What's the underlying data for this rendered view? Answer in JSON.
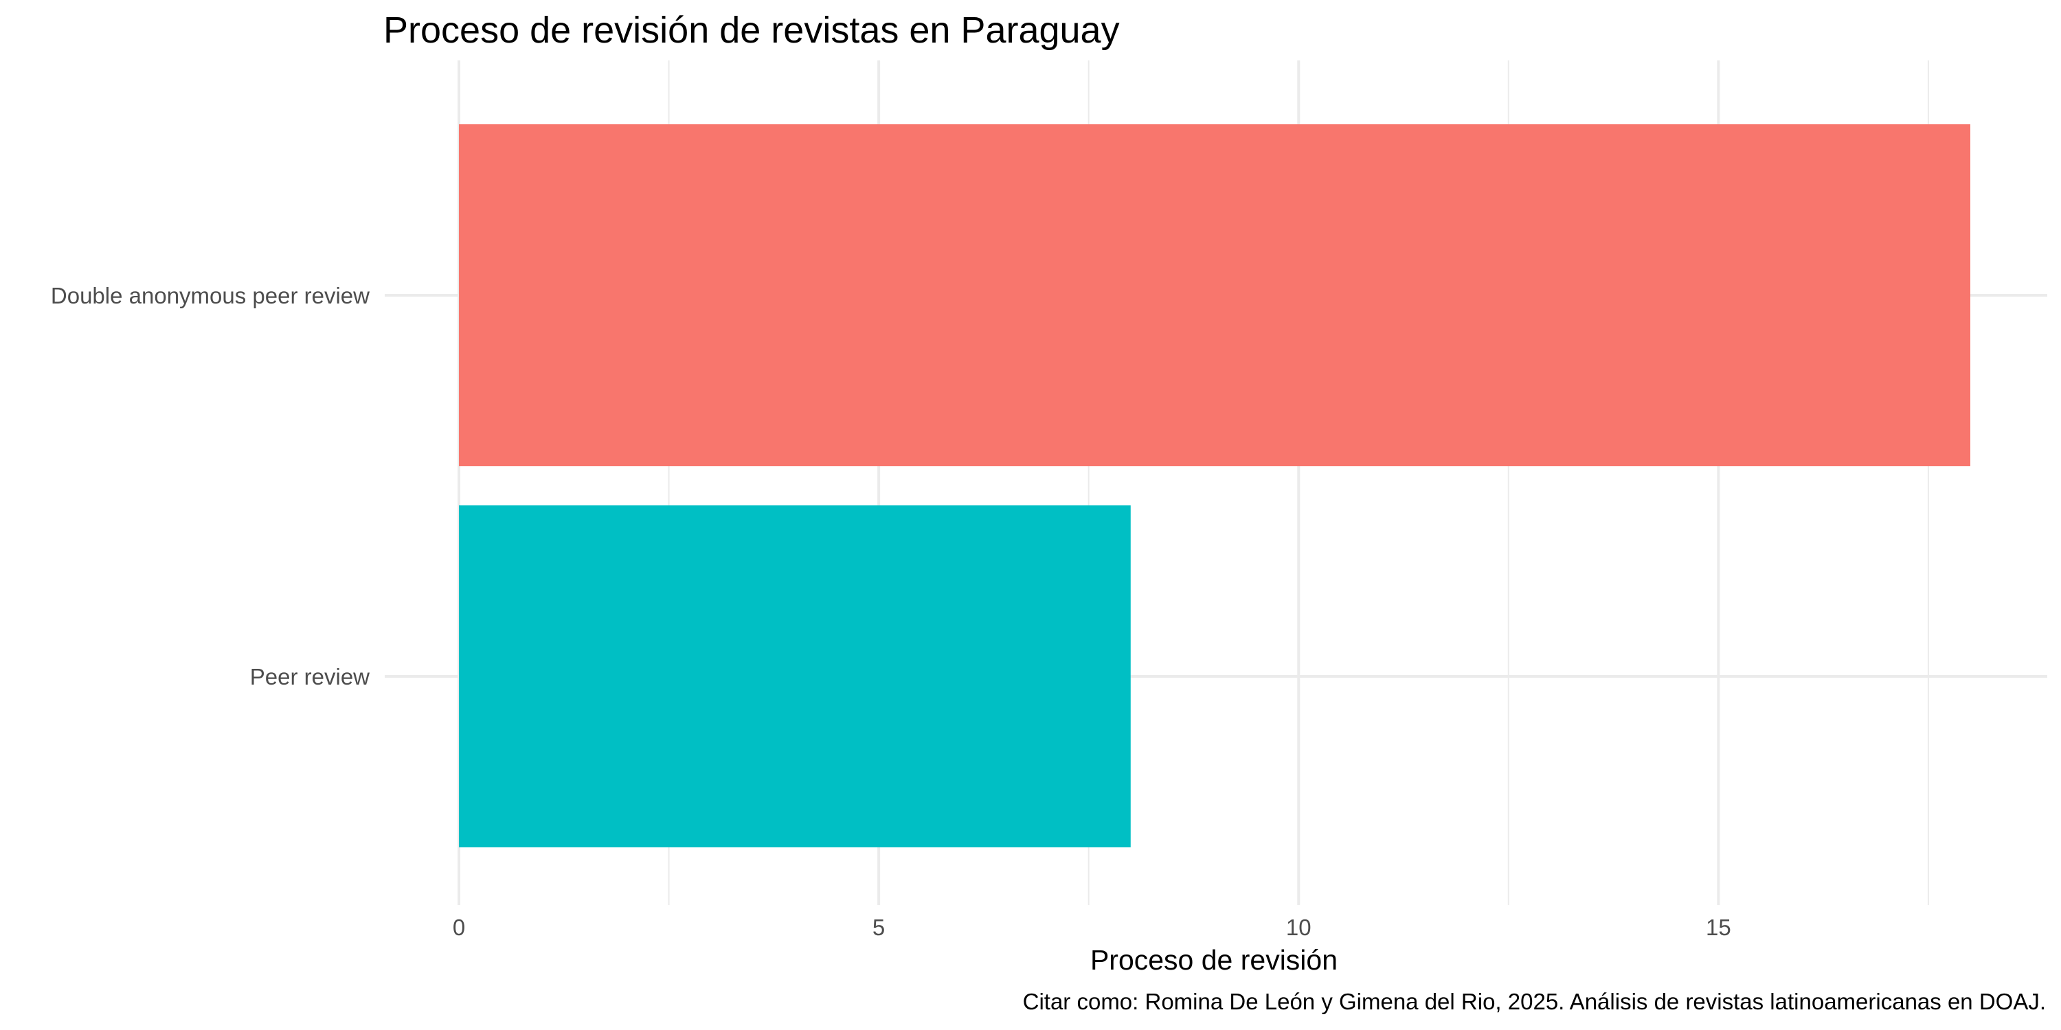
{
  "chart_data": {
    "type": "bar",
    "orientation": "horizontal",
    "title": "Proceso de revisión de revistas en Paraguay",
    "xlabel": "Proceso de revisión",
    "ylabel": "",
    "caption": "Citar como: Romina De León y Gimena del Rio, 2025. Análisis de revistas latinoamericanas en DOAJ.",
    "categories": [
      "Double anonymous peer review",
      "Peer review"
    ],
    "values": [
      18,
      8
    ],
    "colors": [
      "#F8766D",
      "#00BFC4"
    ],
    "xlim": [
      0,
      18.9
    ],
    "xticks": [
      0,
      5,
      10,
      15
    ],
    "xticks_minor": [
      2.5,
      7.5,
      12.5,
      17.5
    ],
    "grid": true,
    "legend": "none"
  }
}
